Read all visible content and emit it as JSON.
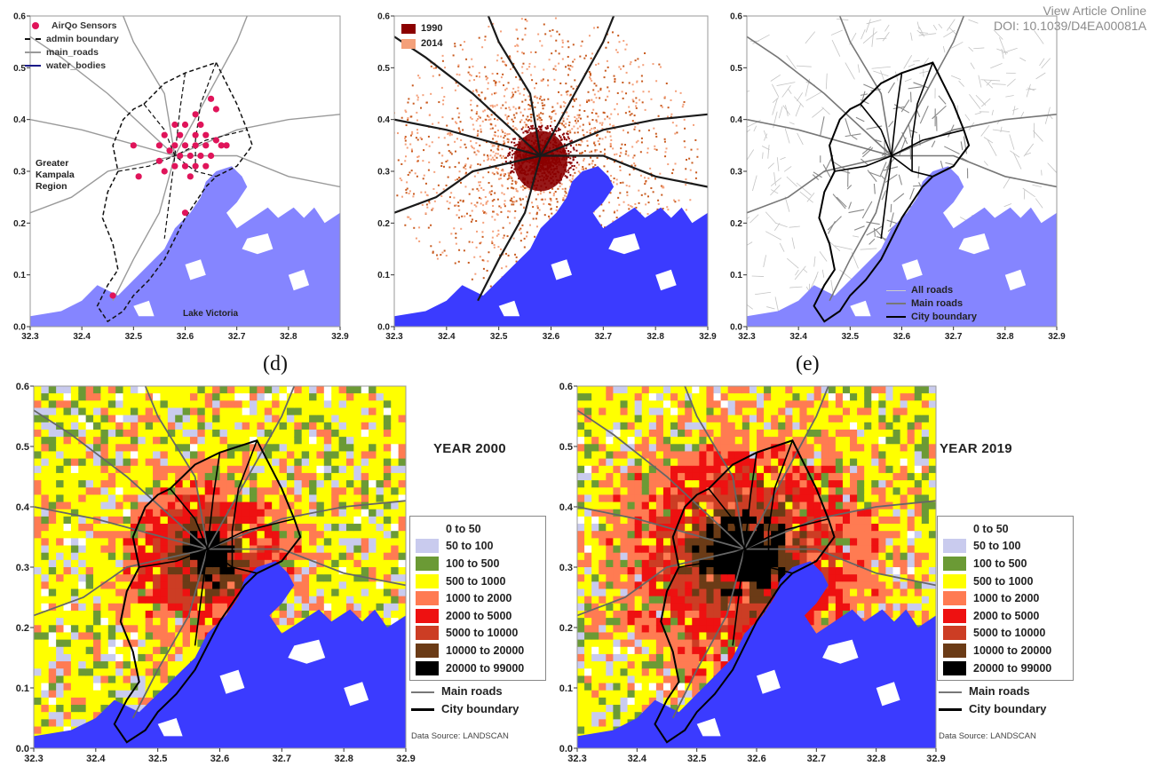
{
  "header": {
    "view_link": "View Article Online",
    "doi": "DOI: 10.1039/D4EA00081A"
  },
  "ticks": {
    "x": [
      "32.3",
      "32.4",
      "32.5",
      "32.6",
      "32.7",
      "32.8",
      "32.9"
    ],
    "y": [
      "0.0",
      "0.1",
      "0.2",
      "0.3",
      "0.4",
      "0.5",
      "0.6"
    ]
  },
  "colors": {
    "water": "#3b3bff",
    "water_light": "#8585ff",
    "road": "#9a9a9a",
    "sensor": "#e0145a",
    "urban1990": "#8b0000",
    "urban2014": "#f4a07a"
  },
  "panel_a": {
    "legend": [
      "AirQo Sensors",
      "admin boundary",
      "main_roads",
      "water_bodies"
    ],
    "region_label": [
      "Greater",
      "Kampala",
      "Region"
    ],
    "lake_label": "Lake Victoria",
    "sensors": [
      [
        32.62,
        32.41
      ],
      [
        32.65,
        32.44
      ],
      [
        32.66,
        32.42
      ],
      [
        32.58,
        32.39
      ],
      [
        32.6,
        32.39
      ],
      [
        32.63,
        32.39
      ],
      [
        32.56,
        32.37
      ],
      [
        32.59,
        32.37
      ],
      [
        32.62,
        32.37
      ],
      [
        32.64,
        32.37
      ],
      [
        32.67,
        32.35
      ],
      [
        32.55,
        32.35
      ],
      [
        32.58,
        32.35
      ],
      [
        32.6,
        32.35
      ],
      [
        32.62,
        32.35
      ],
      [
        32.64,
        32.35
      ],
      [
        32.57,
        32.34
      ],
      [
        32.59,
        32.33
      ],
      [
        32.61,
        32.33
      ],
      [
        32.63,
        32.33
      ],
      [
        32.65,
        32.33
      ],
      [
        32.55,
        32.32
      ],
      [
        32.58,
        32.31
      ],
      [
        32.6,
        32.31
      ],
      [
        32.62,
        32.31
      ],
      [
        32.64,
        32.31
      ],
      [
        32.56,
        32.3
      ],
      [
        32.61,
        32.29
      ],
      [
        32.5,
        32.35
      ],
      [
        32.51,
        32.29
      ],
      [
        32.6,
        32.22
      ],
      [
        32.46,
        32.06
      ],
      [
        32.66,
        32.36
      ],
      [
        32.68,
        32.35
      ]
    ]
  },
  "panel_b": {
    "legend": [
      "1990",
      "2014"
    ]
  },
  "panel_c": {
    "legend": [
      "All roads",
      "Main roads",
      "City boundary"
    ]
  },
  "panel_d": {
    "label": "(d)",
    "year": "YEAR 2000",
    "source": "Data Source: LANDSCAN"
  },
  "panel_e": {
    "label": "(e)",
    "year": "YEAR 2019",
    "source": "Data Source: LANDSCAN"
  },
  "pop_classes": [
    {
      "label": "0  to  50",
      "color": "#ffffff"
    },
    {
      "label": "50  to  100",
      "color": "#c9cbee"
    },
    {
      "label": "100  to  500",
      "color": "#6b9a35"
    },
    {
      "label": "500  to  1000",
      "color": "#ffff00"
    },
    {
      "label": "1000  to  2000",
      "color": "#ff7b52"
    },
    {
      "label": "2000  to  5000",
      "color": "#ee1111"
    },
    {
      "label": "5000  to  10000",
      "color": "#cc3d24"
    },
    {
      "label": "10000  to  20000",
      "color": "#6b3b16"
    },
    {
      "label": "20000  to  99000",
      "color": "#000000"
    }
  ],
  "road_legend": [
    "Main roads",
    "City boundary"
  ]
}
